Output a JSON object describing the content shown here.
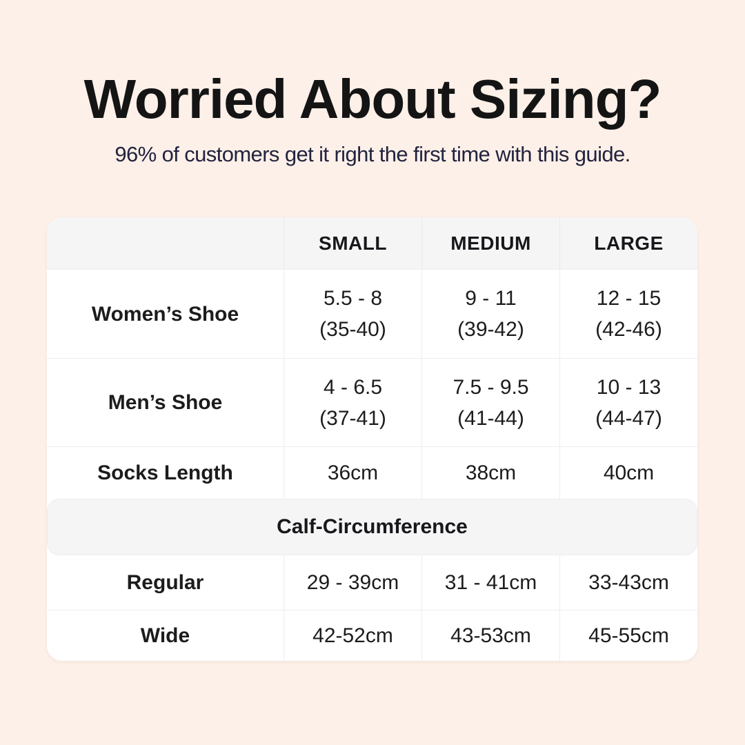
{
  "header": {
    "title": "Worried About Sizing?",
    "subtitle": "96% of customers get it right the first time with this guide."
  },
  "colors": {
    "page_background": "#fdf0e8",
    "table_background": "#ffffff",
    "header_row_background": "#f5f5f6",
    "divider": "#ededf0",
    "title_text": "#141414",
    "subtitle_text": "#23233f",
    "cell_text": "#1c1c1c"
  },
  "table": {
    "columns": [
      "",
      "SMALL",
      "MEDIUM",
      "LARGE"
    ],
    "rows": [
      {
        "label": "Women’s Shoe",
        "cells": [
          {
            "line1": "5.5 - 8",
            "line2": "(35-40)"
          },
          {
            "line1": "9 - 11",
            "line2": "(39-42)"
          },
          {
            "line1": "12 - 15",
            "line2": "(42-46)"
          }
        ]
      },
      {
        "label": "Men’s Shoe",
        "cells": [
          {
            "line1": "4 - 6.5",
            "line2": "(37-41)"
          },
          {
            "line1": "7.5 - 9.5",
            "line2": "(41-44)"
          },
          {
            "line1": "10 - 13",
            "line2": "(44-47)"
          }
        ]
      },
      {
        "label": "Socks Length",
        "cells": [
          {
            "line1": "36cm"
          },
          {
            "line1": "38cm"
          },
          {
            "line1": "40cm"
          }
        ]
      }
    ],
    "section_header": "Calf-Circumference",
    "calf_rows": [
      {
        "label": "Regular",
        "cells": [
          {
            "line1": "29 - 39cm"
          },
          {
            "line1": "31 - 41cm"
          },
          {
            "line1": "33-43cm"
          }
        ]
      },
      {
        "label": "Wide",
        "cells": [
          {
            "line1": "42-52cm"
          },
          {
            "line1": "43-53cm"
          },
          {
            "line1": "45-55cm"
          }
        ]
      }
    ]
  },
  "chart_data": {
    "type": "table",
    "title": "Worried About Sizing?",
    "subtitle": "96% of customers get it right the first time with this guide.",
    "columns": [
      "",
      "SMALL",
      "MEDIUM",
      "LARGE"
    ],
    "rows": [
      [
        "Women’s Shoe",
        "5.5 - 8 (35-40)",
        "9 - 11 (39-42)",
        "12 - 15 (42-46)"
      ],
      [
        "Men’s Shoe",
        "4 - 6.5 (37-41)",
        "7.5 - 9.5 (41-44)",
        "10 - 13 (44-47)"
      ],
      [
        "Socks Length",
        "36cm",
        "38cm",
        "40cm"
      ],
      [
        "Calf-Circumference",
        "",
        "",
        ""
      ],
      [
        "Regular",
        "29 - 39cm",
        "31 - 41cm",
        "33-43cm"
      ],
      [
        "Wide",
        "42-52cm",
        "43-53cm",
        "45-55cm"
      ]
    ],
    "layout": {
      "section_header_spans_all_columns": "Calf-Circumference",
      "header_row_shaded": true,
      "grid": true
    }
  }
}
